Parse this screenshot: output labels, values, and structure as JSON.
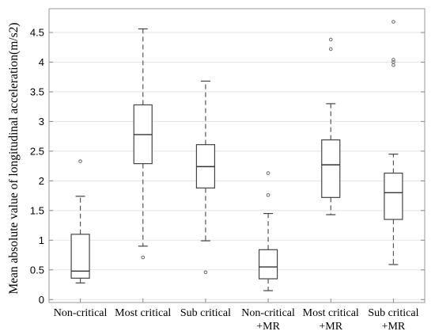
{
  "chart_data": {
    "type": "box",
    "ylabel": "Mean absolute value of longitudinal acceleration(m/s2)",
    "xlabel": "",
    "ylim": [
      -0.05,
      4.9
    ],
    "yticks": [
      0,
      0.5,
      1,
      1.5,
      2,
      2.5,
      3,
      3.5,
      4,
      4.5
    ],
    "grid": "horizontal",
    "categories": [
      [
        "Non-critical"
      ],
      [
        "Most critical"
      ],
      [
        "Sub critical"
      ],
      [
        "Non-critical",
        "+MR"
      ],
      [
        "Most critical",
        "+MR"
      ],
      [
        "Sub critical",
        "+MR"
      ]
    ],
    "boxes": [
      {
        "whisker_low": 0.28,
        "q1": 0.36,
        "median": 0.48,
        "q3": 1.1,
        "whisker_high": 1.74,
        "outliers": [
          2.33
        ]
      },
      {
        "whisker_low": 0.9,
        "q1": 2.29,
        "median": 2.78,
        "q3": 3.28,
        "whisker_high": 4.56,
        "outliers": [
          0.71
        ]
      },
      {
        "whisker_low": 0.99,
        "q1": 1.88,
        "median": 2.24,
        "q3": 2.61,
        "whisker_high": 3.68,
        "outliers": [
          0.46
        ]
      },
      {
        "whisker_low": 0.15,
        "q1": 0.35,
        "median": 0.55,
        "q3": 0.84,
        "whisker_high": 1.45,
        "outliers": [
          1.76,
          2.13
        ]
      },
      {
        "whisker_low": 1.43,
        "q1": 1.72,
        "median": 2.27,
        "q3": 2.69,
        "whisker_high": 3.3,
        "outliers": [
          4.22,
          4.38
        ]
      },
      {
        "whisker_low": 0.59,
        "q1": 1.35,
        "median": 1.8,
        "q3": 2.13,
        "whisker_high": 2.45,
        "outliers": [
          3.95,
          4.0,
          4.04,
          4.68
        ]
      }
    ]
  }
}
